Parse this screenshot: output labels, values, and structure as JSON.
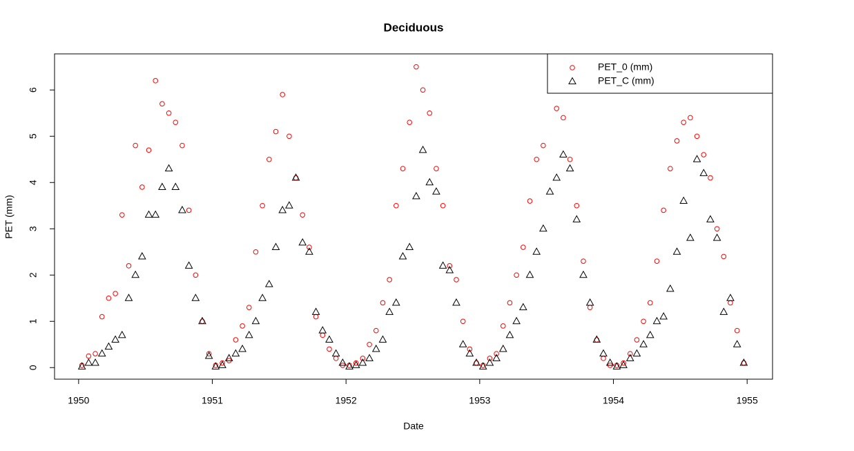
{
  "chart_data": {
    "type": "scatter",
    "title": "Deciduous",
    "xlabel": "Date",
    "ylabel": "PET (mm)",
    "x": [
      1950.025,
      1950.075,
      1950.125,
      1950.175,
      1950.225,
      1950.275,
      1950.325,
      1950.375,
      1950.425,
      1950.475,
      1950.525,
      1950.575,
      1950.625,
      1950.675,
      1950.725,
      1950.775,
      1950.825,
      1950.875,
      1950.925,
      1950.975,
      1951.025,
      1951.075,
      1951.125,
      1951.175,
      1951.225,
      1951.275,
      1951.325,
      1951.375,
      1951.425,
      1951.475,
      1951.525,
      1951.575,
      1951.625,
      1951.675,
      1951.725,
      1951.775,
      1951.825,
      1951.875,
      1951.925,
      1951.975,
      1952.025,
      1952.075,
      1952.125,
      1952.175,
      1952.225,
      1952.275,
      1952.325,
      1952.375,
      1952.425,
      1952.475,
      1952.525,
      1952.575,
      1952.625,
      1952.675,
      1952.725,
      1952.775,
      1952.825,
      1952.875,
      1952.925,
      1952.975,
      1953.025,
      1953.075,
      1953.125,
      1953.175,
      1953.225,
      1953.275,
      1953.325,
      1953.375,
      1953.425,
      1953.475,
      1953.525,
      1953.575,
      1953.625,
      1953.675,
      1953.725,
      1953.775,
      1953.825,
      1953.875,
      1953.925,
      1953.975,
      1954.025,
      1954.075,
      1954.125,
      1954.175,
      1954.225,
      1954.275,
      1954.325,
      1954.375,
      1954.425,
      1954.475,
      1954.525,
      1954.575,
      1954.625,
      1954.675,
      1954.725,
      1954.775,
      1954.825,
      1954.875,
      1954.925,
      1954.975
    ],
    "series": [
      {
        "name": "PET_0 (mm)",
        "color": "#ff0000",
        "marker": "circle",
        "values": [
          0.05,
          0.25,
          0.3,
          1.1,
          1.5,
          1.6,
          3.3,
          2.2,
          4.8,
          3.9,
          4.7,
          6.2,
          5.7,
          5.5,
          5.3,
          4.8,
          3.4,
          2.0,
          1.0,
          0.3,
          0.05,
          0.1,
          0.15,
          0.6,
          0.9,
          1.3,
          2.5,
          3.5,
          4.5,
          5.1,
          5.9,
          5.0,
          4.1,
          3.3,
          2.6,
          1.1,
          0.7,
          0.4,
          0.2,
          0.05,
          0.05,
          0.1,
          0.2,
          0.5,
          0.8,
          1.4,
          1.9,
          3.5,
          4.3,
          5.3,
          6.5,
          6.0,
          5.5,
          4.3,
          3.5,
          2.2,
          1.9,
          1.0,
          0.4,
          0.1,
          0.05,
          0.2,
          0.3,
          0.9,
          1.4,
          2.0,
          2.6,
          3.6,
          4.5,
          4.8,
          6.0,
          5.6,
          5.4,
          4.5,
          3.5,
          2.3,
          1.3,
          0.6,
          0.2,
          0.05,
          0.05,
          0.1,
          0.3,
          0.6,
          1.0,
          1.4,
          2.3,
          3.4,
          4.3,
          4.9,
          5.3,
          5.4,
          5.0,
          4.6,
          4.1,
          3.0,
          2.4,
          1.4,
          0.8,
          0.1
        ]
      },
      {
        "name": "PET_C (mm)",
        "color": "#000000",
        "marker": "triangle",
        "values": [
          0.02,
          0.1,
          0.1,
          0.3,
          0.45,
          0.6,
          0.7,
          1.5,
          2.0,
          2.4,
          3.3,
          3.3,
          3.9,
          4.3,
          3.9,
          3.4,
          2.2,
          1.5,
          1.0,
          0.25,
          0.02,
          0.05,
          0.2,
          0.3,
          0.4,
          0.7,
          1.0,
          1.5,
          1.8,
          2.6,
          3.4,
          3.5,
          4.1,
          2.7,
          2.5,
          1.2,
          0.8,
          0.6,
          0.3,
          0.1,
          0.02,
          0.05,
          0.1,
          0.2,
          0.4,
          0.6,
          1.2,
          1.4,
          2.4,
          2.6,
          3.7,
          4.7,
          4.0,
          3.8,
          2.2,
          2.1,
          1.4,
          0.5,
          0.3,
          0.1,
          0.02,
          0.1,
          0.2,
          0.4,
          0.7,
          1.0,
          1.3,
          2.0,
          2.5,
          3.0,
          3.8,
          4.1,
          4.6,
          4.3,
          3.2,
          2.0,
          1.4,
          0.6,
          0.3,
          0.1,
          0.02,
          0.05,
          0.2,
          0.3,
          0.5,
          0.7,
          1.0,
          1.1,
          1.7,
          2.5,
          3.6,
          2.8,
          4.5,
          4.2,
          3.2,
          2.8,
          1.2,
          1.5,
          0.5,
          0.1
        ]
      }
    ],
    "xlim": [
      1949.82,
      1955.19
    ],
    "xticks": [
      1950,
      1951,
      1952,
      1953,
      1954,
      1955
    ],
    "ylim": [
      -0.25,
      6.78
    ],
    "yticks": [
      0,
      1,
      2,
      3,
      4,
      5,
      6
    ],
    "legend": "topright"
  }
}
